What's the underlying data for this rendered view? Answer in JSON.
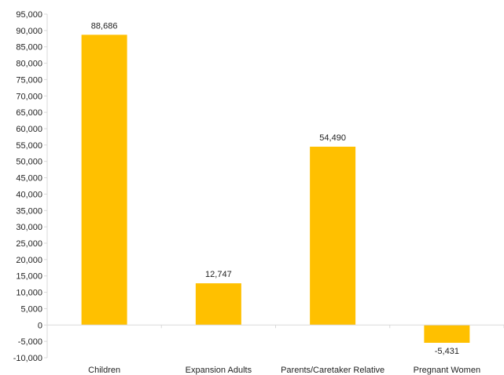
{
  "chart_data": {
    "type": "bar",
    "title": "",
    "xlabel": "",
    "ylabel": "",
    "categories": [
      "Children",
      "Expansion Adults",
      "Parents/Caretaker Relative",
      "Pregnant Women"
    ],
    "values": [
      88686,
      12747,
      54490,
      -5431
    ],
    "data_labels": [
      "88,686",
      "12,747",
      "54,490",
      "-5,431"
    ],
    "ylim": [
      -10000,
      95000
    ],
    "ytick_step": 5000,
    "ytick_labels": [
      "-10,000",
      "-5,000",
      "0",
      "5,000",
      "10,000",
      "15,000",
      "20,000",
      "25,000",
      "30,000",
      "35,000",
      "40,000",
      "45,000",
      "50,000",
      "55,000",
      "60,000",
      "65,000",
      "70,000",
      "75,000",
      "80,000",
      "85,000",
      "90,000",
      "95,000"
    ],
    "grid": false,
    "legend": "none",
    "bar_color": "#FFC000",
    "axis_color": "#D9D9D9"
  }
}
